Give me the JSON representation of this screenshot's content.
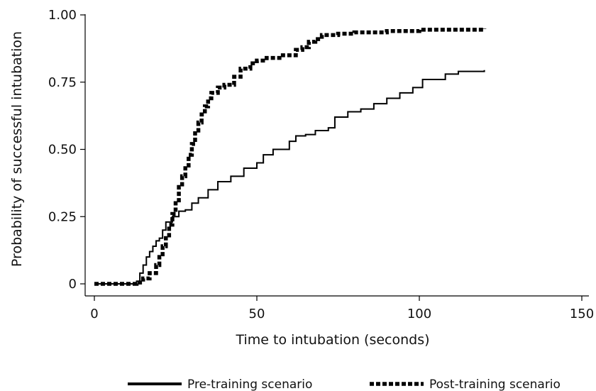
{
  "chart_data": {
    "type": "line",
    "title": "",
    "xlabel": "Time to intubation (seconds)",
    "ylabel": "Probability of successful intubation",
    "xlim": [
      0,
      150
    ],
    "ylim": [
      0,
      1
    ],
    "x_ticks": [
      0,
      50,
      100,
      150
    ],
    "x_tick_labels": [
      "0",
      "50",
      "100",
      "150"
    ],
    "y_ticks": [
      0,
      0.25,
      0.5,
      0.75,
      1.0
    ],
    "y_tick_labels": [
      "0",
      "0.25",
      "0.50",
      "0.75",
      "1.00"
    ],
    "grid": false,
    "legend_position": "bottom",
    "series": [
      {
        "name": "Pre-training scenario",
        "style": "solid",
        "color": "#000000",
        "step": true,
        "points": [
          [
            0,
            0
          ],
          [
            12,
            0
          ],
          [
            13,
            0.01
          ],
          [
            14,
            0.04
          ],
          [
            15,
            0.07
          ],
          [
            16,
            0.1
          ],
          [
            17,
            0.12
          ],
          [
            18,
            0.14
          ],
          [
            19,
            0.16
          ],
          [
            20,
            0.17
          ],
          [
            21,
            0.2
          ],
          [
            22,
            0.23
          ],
          [
            24,
            0.25
          ],
          [
            26,
            0.27
          ],
          [
            28,
            0.275
          ],
          [
            30,
            0.3
          ],
          [
            32,
            0.32
          ],
          [
            35,
            0.35
          ],
          [
            38,
            0.38
          ],
          [
            42,
            0.4
          ],
          [
            46,
            0.43
          ],
          [
            50,
            0.45
          ],
          [
            52,
            0.48
          ],
          [
            55,
            0.5
          ],
          [
            60,
            0.53
          ],
          [
            62,
            0.55
          ],
          [
            65,
            0.555
          ],
          [
            68,
            0.57
          ],
          [
            72,
            0.58
          ],
          [
            74,
            0.62
          ],
          [
            78,
            0.64
          ],
          [
            82,
            0.65
          ],
          [
            86,
            0.67
          ],
          [
            90,
            0.69
          ],
          [
            94,
            0.71
          ],
          [
            98,
            0.73
          ],
          [
            100,
            0.73
          ],
          [
            101,
            0.76
          ],
          [
            106,
            0.76
          ],
          [
            108,
            0.78
          ],
          [
            112,
            0.79
          ],
          [
            120,
            0.795
          ]
        ]
      },
      {
        "name": "Post-training scenario",
        "style": "dashed",
        "color": "#000000",
        "step": true,
        "points": [
          [
            0,
            0
          ],
          [
            12,
            0
          ],
          [
            13,
            0.005
          ],
          [
            15,
            0.02
          ],
          [
            17,
            0.04
          ],
          [
            19,
            0.07
          ],
          [
            20,
            0.1
          ],
          [
            21,
            0.14
          ],
          [
            22,
            0.18
          ],
          [
            23,
            0.22
          ],
          [
            24,
            0.26
          ],
          [
            25,
            0.3
          ],
          [
            26,
            0.36
          ],
          [
            27,
            0.4
          ],
          [
            28,
            0.44
          ],
          [
            29,
            0.48
          ],
          [
            30,
            0.52
          ],
          [
            31,
            0.57
          ],
          [
            32,
            0.6
          ],
          [
            33,
            0.63
          ],
          [
            34,
            0.66
          ],
          [
            35,
            0.69
          ],
          [
            36,
            0.71
          ],
          [
            38,
            0.73
          ],
          [
            40,
            0.74
          ],
          [
            43,
            0.77
          ],
          [
            45,
            0.8
          ],
          [
            48,
            0.82
          ],
          [
            50,
            0.83
          ],
          [
            53,
            0.84
          ],
          [
            56,
            0.84
          ],
          [
            58,
            0.85
          ],
          [
            62,
            0.87
          ],
          [
            64,
            0.88
          ],
          [
            66,
            0.9
          ],
          [
            68,
            0.91
          ],
          [
            70,
            0.925
          ],
          [
            75,
            0.93
          ],
          [
            80,
            0.935
          ],
          [
            90,
            0.94
          ],
          [
            100,
            0.945
          ],
          [
            120,
            0.95
          ]
        ]
      }
    ],
    "legend": [
      {
        "label": "Pre-training scenario",
        "style": "solid"
      },
      {
        "label": "Post-training scenario",
        "style": "dashed"
      }
    ]
  }
}
